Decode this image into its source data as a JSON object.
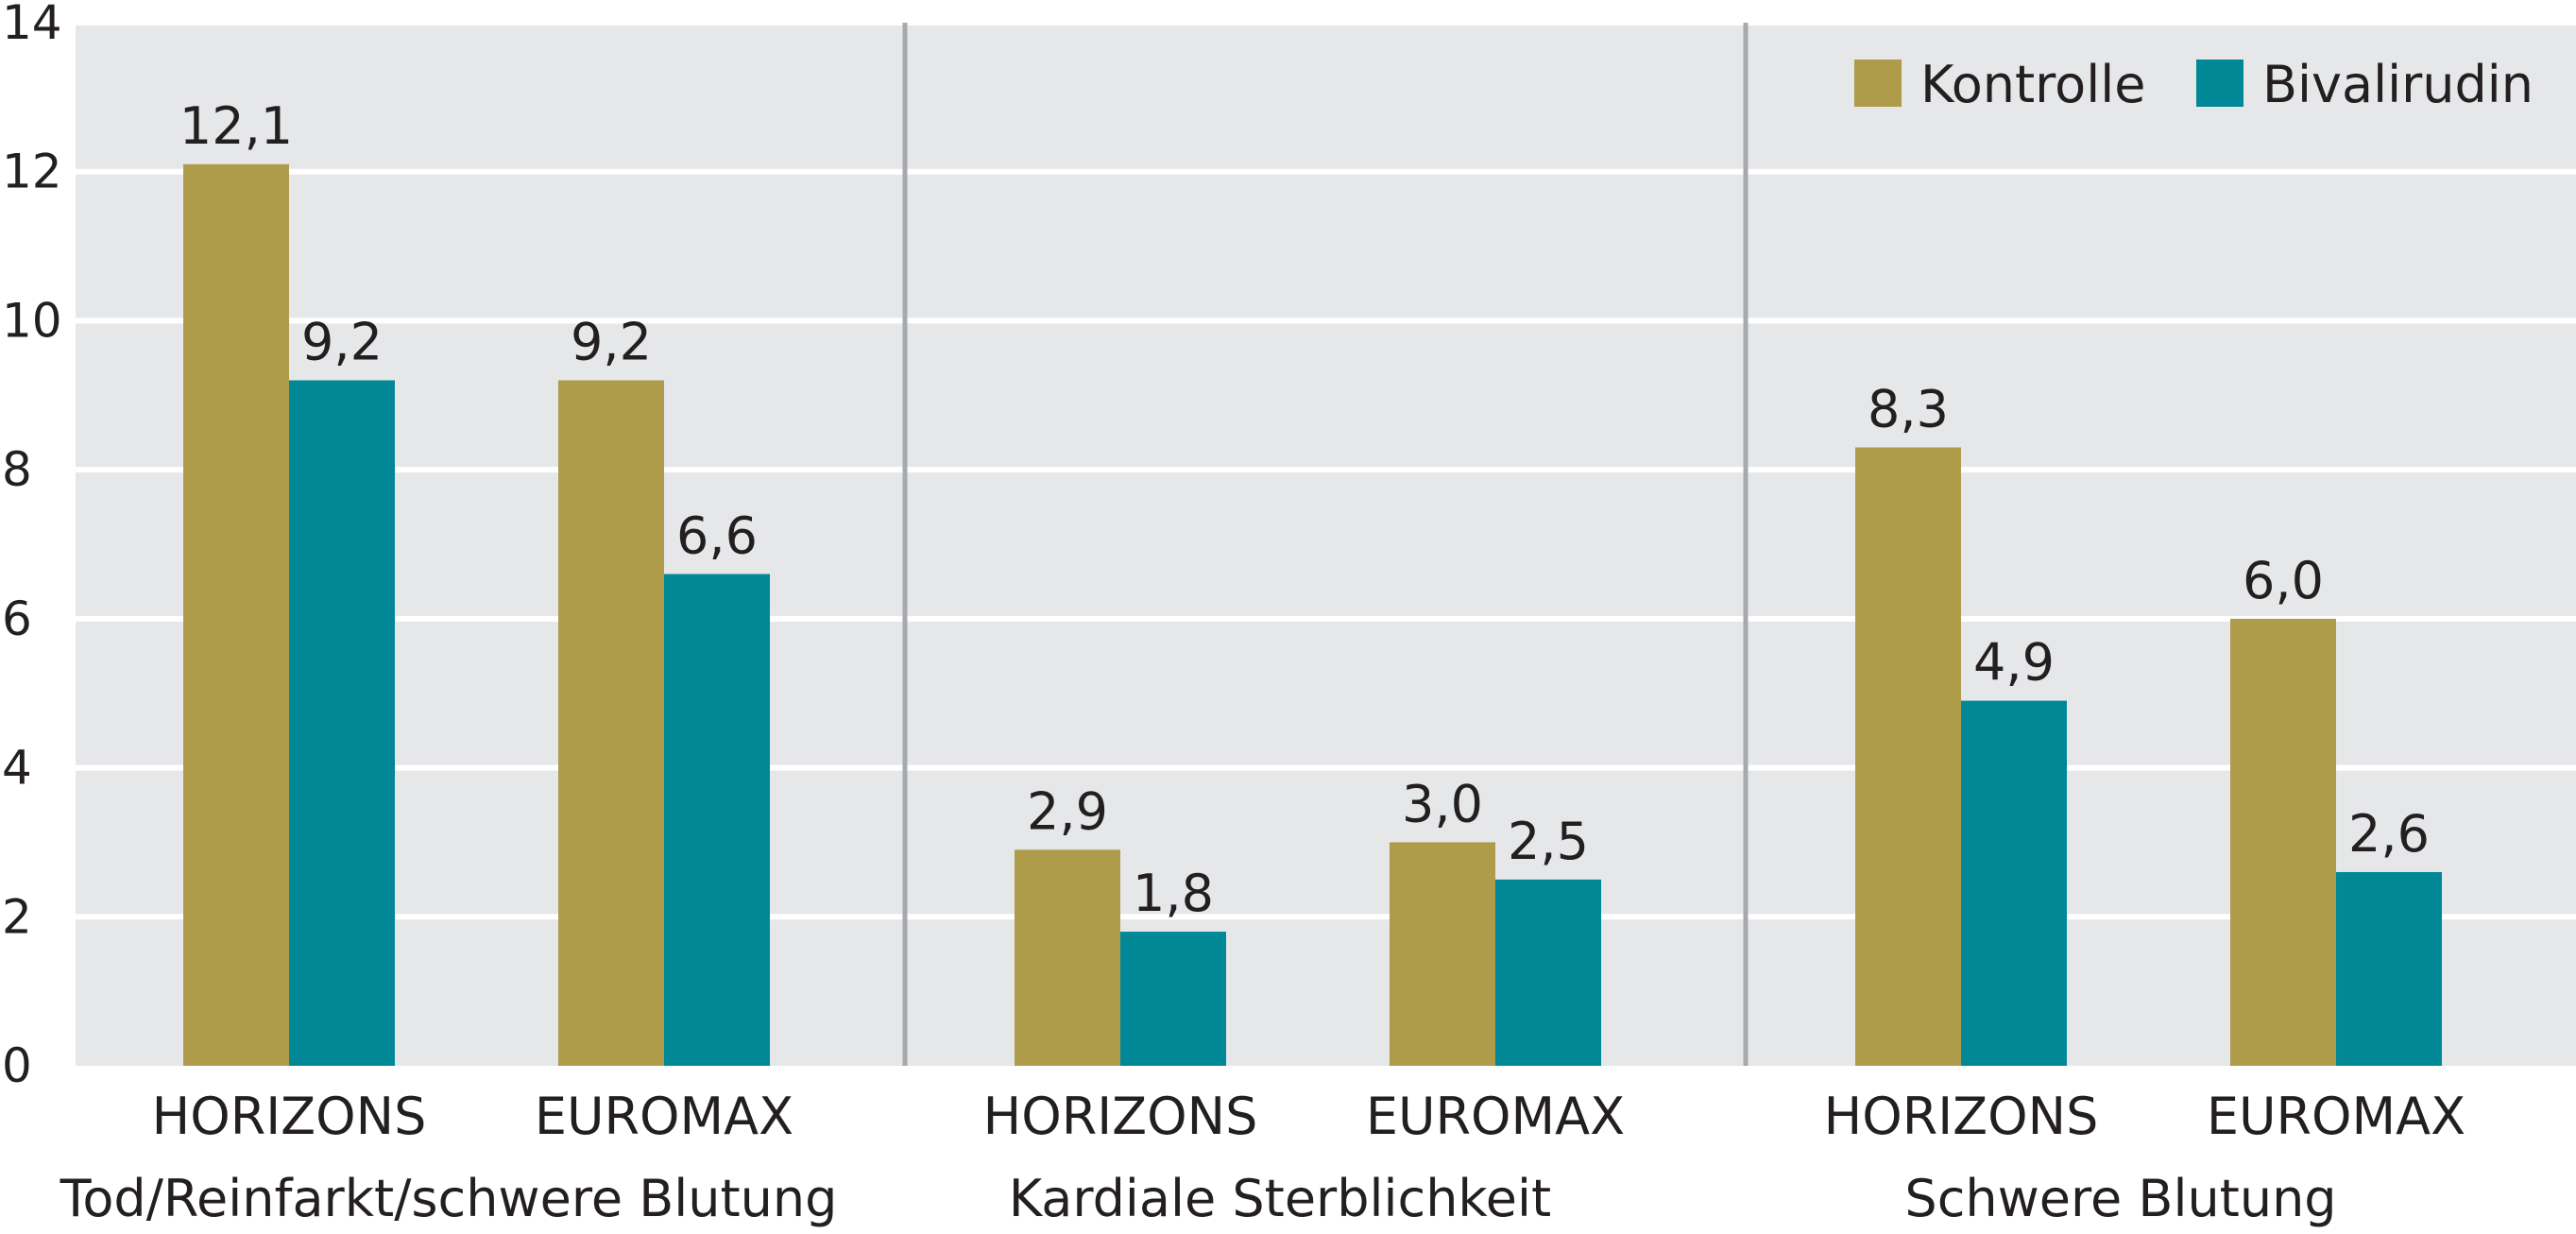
{
  "chart_data": {
    "type": "bar",
    "ylim": [
      0,
      14
    ],
    "yticks": [
      "0",
      "2",
      "4",
      "6",
      "8",
      "10",
      "12",
      "14"
    ],
    "grid": true,
    "legend_position": "top-right",
    "colors": {
      "background": "#e6e7e9",
      "grid": "#ffffff",
      "separator": "#a7a9ac",
      "Kontrolle": "#ae9c4a",
      "Bivalirudin": "#008896"
    },
    "legend": [
      "Kontrolle",
      "Bivalirudin"
    ],
    "groups": [
      {
        "name": "Tod/Reinfarkt/schwere Blutung",
        "categories": [
          {
            "name": "HORIZONS",
            "values": [
              12.1,
              9.2
            ],
            "labels": [
              "12,1",
              "9,2"
            ]
          },
          {
            "name": "EUROMAX",
            "values": [
              9.2,
              6.6
            ],
            "labels": [
              "9,2",
              "6,6"
            ]
          }
        ]
      },
      {
        "name": "Kardiale Sterblichkeit",
        "categories": [
          {
            "name": "HORIZONS",
            "values": [
              2.9,
              1.8
            ],
            "labels": [
              "2,9",
              "1,8"
            ]
          },
          {
            "name": "EUROMAX",
            "values": [
              3.0,
              2.5
            ],
            "labels": [
              "3,0",
              "2,5"
            ]
          }
        ]
      },
      {
        "name": "Schwere Blutung",
        "categories": [
          {
            "name": "HORIZONS",
            "values": [
              8.3,
              4.9
            ],
            "labels": [
              "8,3",
              "4,9"
            ]
          },
          {
            "name": "EUROMAX",
            "values": [
              6.0,
              2.6
            ],
            "labels": [
              "6,0",
              "2,6"
            ]
          }
        ]
      }
    ]
  }
}
